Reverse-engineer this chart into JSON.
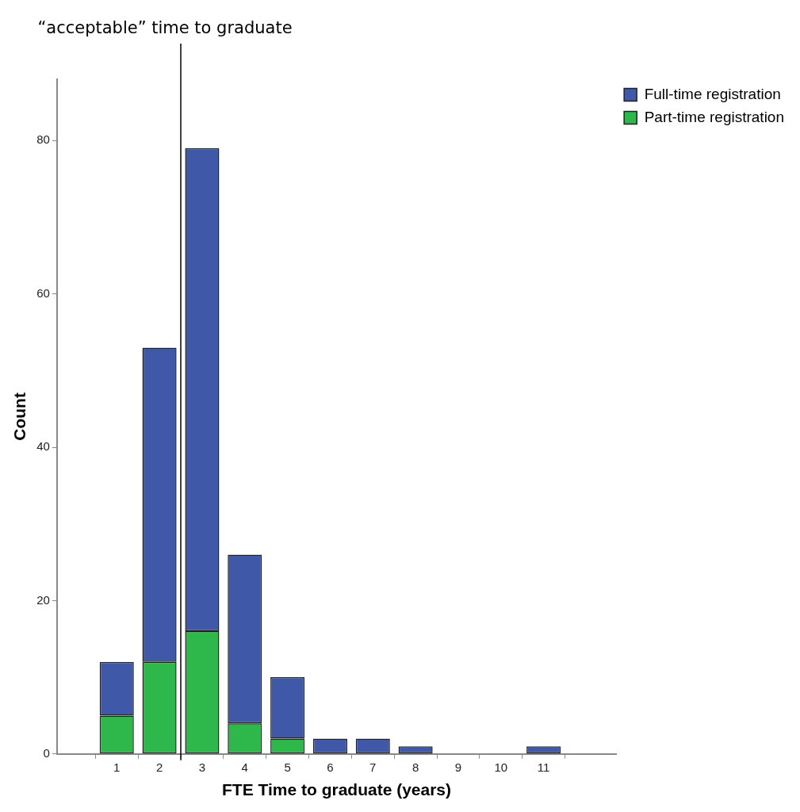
{
  "chart_data": {
    "type": "bar",
    "stacked": true,
    "xlabel": "FTE Time to graduate (years)",
    "ylabel": "Count",
    "x": [
      1,
      2,
      3,
      4,
      5,
      6,
      7,
      8,
      9,
      10,
      11
    ],
    "series": [
      {
        "name": "Part-time registration",
        "color": "#2eb84b",
        "values": [
          5,
          12,
          16,
          4,
          2,
          0,
          0,
          0,
          0,
          0,
          0
        ]
      },
      {
        "name": "Full-time registration",
        "color": "#3f59a8",
        "values": [
          7,
          41,
          63,
          22,
          8,
          2,
          2,
          1,
          0,
          0,
          1
        ]
      }
    ],
    "xlim": [
      -0.4,
      12.7
    ],
    "xticks": [
      1,
      2,
      3,
      4,
      5,
      6,
      7,
      8,
      9,
      10,
      11
    ],
    "ylim": [
      0,
      88
    ],
    "yticks": [
      0,
      20,
      40,
      60,
      80
    ],
    "ref_lines": [
      {
        "axis": "x",
        "value": 2.5,
        "label": "“acceptable” time to graduate"
      }
    ],
    "grid": false,
    "legend": "top right"
  }
}
